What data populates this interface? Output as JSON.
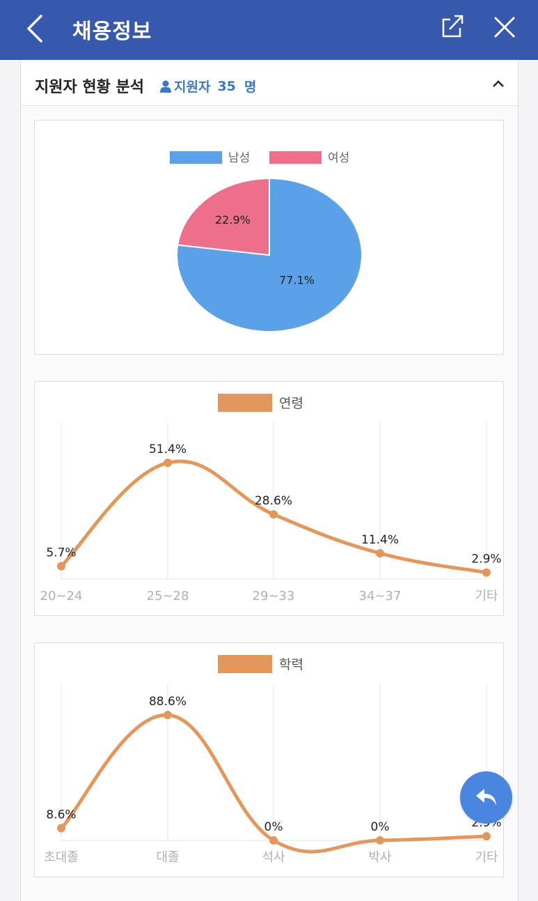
{
  "header": {
    "title": "채용정보",
    "back_icon": "chevron-left-icon",
    "share_icon": "share-icon",
    "close_icon": "close-icon"
  },
  "section": {
    "title": "지원자 현황 분석",
    "applicant_prefix": "지원자",
    "applicant_count": "35",
    "applicant_unit": "명",
    "toggle_icon": "chevron-up-icon"
  },
  "colors": {
    "header_bg": "#3659ad",
    "male": "#5aa1e7",
    "female": "#ee6f89",
    "line": "#e4975a",
    "accent": "#3b78c8",
    "fab": "#4a86e0"
  },
  "chart_data": [
    {
      "type": "pie",
      "series": [
        {
          "name": "남성",
          "value": 77.1,
          "label": "77.1%"
        },
        {
          "name": "여성",
          "value": 22.9,
          "label": "22.9%"
        }
      ],
      "legend_position": "top"
    },
    {
      "type": "line",
      "legend": "연령",
      "categories": [
        "20~24",
        "25~28",
        "29~33",
        "34~37",
        "기타"
      ],
      "values": [
        5.7,
        51.4,
        28.6,
        11.4,
        2.9
      ],
      "labels": [
        "5.7%",
        "51.4%",
        "28.6%",
        "11.4%",
        "2.9%"
      ],
      "ylim": [
        0,
        65
      ],
      "grid": "vertical"
    },
    {
      "type": "line",
      "legend": "학력",
      "categories": [
        "초대졸",
        "대졸",
        "석사",
        "박사",
        "기타"
      ],
      "values": [
        8.6,
        88.6,
        0,
        0,
        2.9
      ],
      "labels": [
        "8.6%",
        "88.6%",
        "0%",
        "0%",
        "2.9%"
      ],
      "ylim": [
        0,
        100
      ],
      "grid": "vertical"
    }
  ],
  "fab": {
    "icon": "undo-arrow-icon"
  }
}
